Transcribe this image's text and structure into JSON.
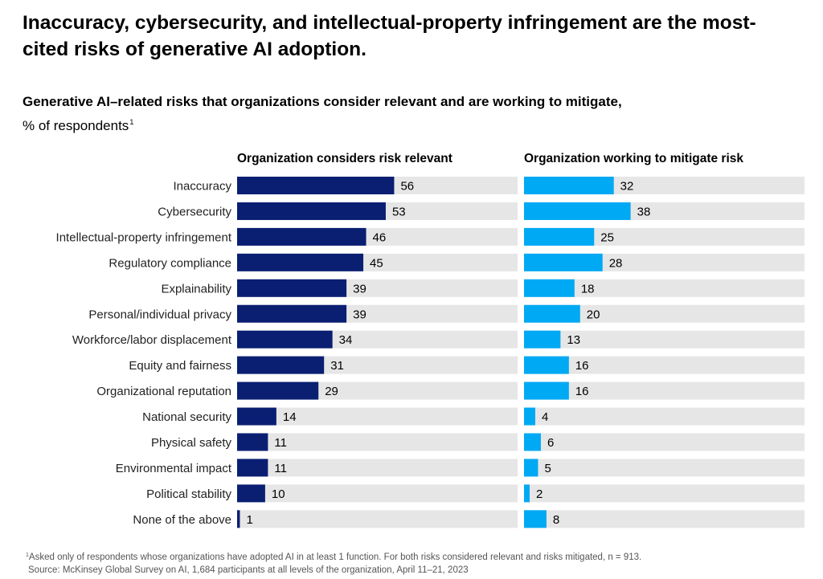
{
  "headline": "Inaccuracy, cybersecurity, and intellectual-property infringement are the most-cited risks of generative AI adoption.",
  "subtitle": "Generative AI–related risks that organizations consider relevant and are working to mitigate,",
  "unit_label": "% of respondents",
  "unit_footnote_mark": "1",
  "footnote": {
    "mark": "1",
    "note": "Asked only of respondents whose organizations have adopted AI in at least 1 function. For both risks considered relevant and risks mitigated, n = 913.",
    "source": "Source: McKinsey Global Survey on AI, 1,684 participants at all levels of the organization, April 11–21, 2023"
  },
  "chart_data": {
    "type": "bar",
    "orientation": "horizontal",
    "categories": [
      "Inaccuracy",
      "Cybersecurity",
      "Intellectual-property infringement",
      "Regulatory compliance",
      "Explainability",
      "Personal/individual privacy",
      "Workforce/labor displacement",
      "Equity and fairness",
      "Organizational reputation",
      "National security",
      "Physical safety",
      "Environmental impact",
      "Political stability",
      "None of the above"
    ],
    "series": [
      {
        "name": "Organization considers risk relevant",
        "color": "#0a1f72",
        "values": [
          56,
          53,
          46,
          45,
          39,
          39,
          34,
          31,
          29,
          14,
          11,
          11,
          10,
          1
        ]
      },
      {
        "name": "Organization working to mitigate risk",
        "color": "#00a9f4",
        "values": [
          32,
          38,
          25,
          28,
          18,
          20,
          13,
          16,
          16,
          4,
          6,
          5,
          2,
          8
        ]
      }
    ],
    "xlim": [
      0,
      100
    ],
    "track_color": "#e6e6e6",
    "grid": false,
    "legend": "panel headers"
  }
}
